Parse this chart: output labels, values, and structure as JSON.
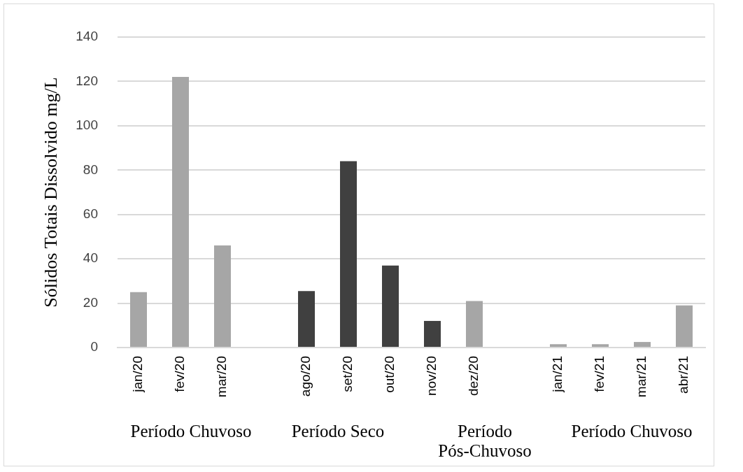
{
  "chart_data": {
    "type": "bar",
    "ylabel": "Sólidos Totais Dissolvido mg/L",
    "categories": [
      "jan/20",
      "fev/20",
      "mar/20",
      null,
      "ago/20",
      "set/20",
      "out/20",
      "nov/20",
      "dez/20",
      null,
      "jan/21",
      "fev/21",
      "mar/21",
      "abr/21"
    ],
    "values": [
      25,
      122,
      46,
      null,
      25.5,
      84,
      37,
      12,
      21,
      null,
      1.5,
      1.5,
      2.5,
      19
    ],
    "colors": [
      "#a6a6a6",
      "#a6a6a6",
      "#a6a6a6",
      null,
      "#404040",
      "#404040",
      "#404040",
      "#404040",
      "#a6a6a6",
      null,
      "#a6a6a6",
      "#a6a6a6",
      "#a6a6a6",
      "#a6a6a6"
    ],
    "ylim": [
      0,
      140
    ],
    "yticks": [
      0,
      20,
      40,
      60,
      80,
      100,
      120,
      140
    ],
    "grid": "y",
    "annotations": [
      "Período Chuvoso",
      "Período Seco",
      "Período\nPós-Chuvoso",
      "Período Chuvoso"
    ]
  }
}
